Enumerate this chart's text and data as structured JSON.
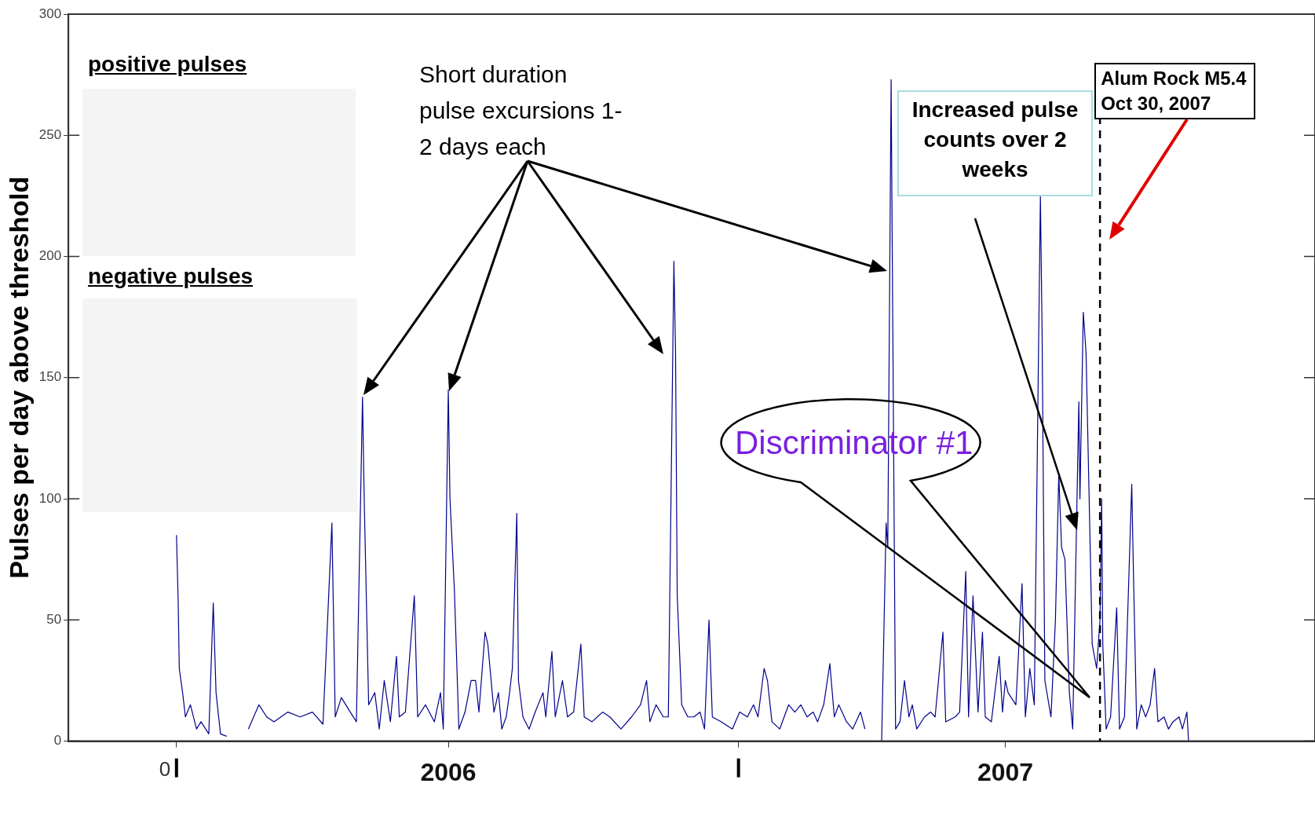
{
  "chart_data": {
    "type": "line",
    "ylabel": "Pulses per day above threshold",
    "annotations": [
      "positive pulses",
      "negative pulses",
      "Short duration pulse excursions 1-2 days each",
      "Increased pulse counts over 2 weeks",
      "Discriminator #1",
      "0"
    ],
    "xlim": [
      2005.318,
      2007.556
    ],
    "xticks": [
      {
        "value": 2005.512,
        "label": null
      },
      2006,
      {
        "value": 2006.521,
        "label": null
      },
      2007
    ],
    "ylim": [
      0,
      300
    ],
    "yticks": [
      0,
      50,
      100,
      150,
      200,
      250,
      300
    ],
    "grid": false,
    "legend": false,
    "marker": "none",
    "line_style": "solid",
    "ref_lines": [
      {
        "axis": "x",
        "value": 2007.17,
        "label": "Alum Rock M5.4 Oct 30, 2007",
        "color": "#000000",
        "line_style": "dashed"
      }
    ],
    "series": [
      {
        "color": "#00008b",
        "x": [
          2005.512,
          2005.515,
          2005.517,
          2005.523,
          2005.528,
          2005.537,
          2005.548,
          2005.556,
          2005.57,
          2005.578,
          2005.583,
          2005.591,
          2005.602,
          2005.622,
          2005.641,
          2005.66,
          2005.674,
          2005.687,
          2005.712,
          2005.734,
          2005.756,
          2005.775,
          2005.791,
          2005.797,
          2005.808,
          2005.824,
          2005.835,
          2005.846,
          2005.849,
          2005.857,
          2005.868,
          2005.876,
          2005.885,
          2005.896,
          2005.907,
          2005.912,
          2005.923,
          2005.939,
          2005.945,
          2005.959,
          2005.975,
          2005.986,
          2005.991,
          2006.0,
          2006.003,
          2006.011,
          2006.019,
          2006.03,
          2006.041,
          2006.049,
          2006.055,
          2006.066,
          2006.071,
          2006.082,
          2006.09,
          2006.096,
          2006.104,
          2006.11,
          2006.115,
          2006.123,
          2006.126,
          2006.134,
          2006.145,
          2006.156,
          2006.17,
          2006.175,
          2006.186,
          2006.192,
          2006.205,
          2006.214,
          2006.225,
          2006.238,
          2006.244,
          2006.258,
          2006.277,
          2006.29,
          2006.31,
          2006.329,
          2006.345,
          2006.356,
          2006.362,
          2006.373,
          2006.386,
          2006.395,
          2006.405,
          2006.408,
          2006.411,
          2006.419,
          2006.43,
          2006.441,
          2006.452,
          2006.46,
          2006.468,
          2006.474,
          2006.49,
          2006.51,
          2006.523,
          2006.537,
          2006.548,
          2006.556,
          2006.567,
          2006.573,
          2006.581,
          2006.595,
          2006.611,
          2006.622,
          2006.633,
          2006.644,
          2006.655,
          2006.663,
          2006.674,
          2006.685,
          2006.693,
          2006.701,
          2006.715,
          2006.726,
          2006.74,
          2006.748,
          2006.773,
          2006.778,
          2006.786,
          2006.789,
          2006.795,
          2006.797,
          2006.803,
          2006.811,
          2006.819,
          2006.827,
          2006.833,
          2006.841,
          2006.855,
          2006.866,
          2006.874,
          2006.888,
          2006.893,
          2006.91,
          2006.918,
          2006.929,
          2006.934,
          2006.942,
          2006.951,
          2006.959,
          2006.964,
          2006.975,
          2006.989,
          2006.995,
          2007.0,
          2007.005,
          2007.019,
          2007.03,
          2007.036,
          2007.044,
          2007.052,
          2007.063,
          2007.066,
          2007.071,
          2007.082,
          2007.09,
          2007.096,
          2007.101,
          2007.107,
          2007.115,
          2007.121,
          2007.132,
          2007.134,
          2007.14,
          2007.145,
          2007.151,
          2007.156,
          2007.164,
          2007.17,
          2007.173,
          2007.175,
          2007.181,
          2007.189,
          2007.2,
          2007.205,
          2007.214,
          2007.227,
          2007.23,
          2007.236,
          2007.244,
          2007.252,
          2007.26,
          2007.268,
          2007.274,
          2007.285,
          2007.293,
          2007.301,
          2007.312,
          2007.318,
          2007.326,
          2007.329
        ],
        "values": [
          85,
          58,
          30,
          20,
          10,
          15,
          5,
          8,
          3,
          57,
          20,
          3,
          2,
          null,
          5,
          15,
          10,
          8,
          12,
          10,
          12,
          7,
          90,
          10,
          18,
          12,
          8,
          142,
          100,
          15,
          20,
          5,
          25,
          8,
          35,
          10,
          12,
          60,
          10,
          15,
          8,
          20,
          5,
          145,
          100,
          62,
          5,
          12,
          25,
          25,
          12,
          45,
          40,
          12,
          20,
          5,
          10,
          20,
          30,
          94,
          25,
          10,
          5,
          12,
          20,
          10,
          37,
          10,
          25,
          10,
          12,
          40,
          10,
          8,
          12,
          10,
          5,
          10,
          15,
          25,
          8,
          15,
          10,
          10,
          198,
          160,
          60,
          15,
          10,
          10,
          12,
          5,
          50,
          10,
          8,
          5,
          12,
          10,
          15,
          10,
          30,
          25,
          8,
          5,
          15,
          12,
          15,
          10,
          12,
          8,
          15,
          32,
          10,
          15,
          8,
          5,
          12,
          5,
          null,
          0,
          90,
          80,
          273,
          204,
          5,
          8,
          25,
          10,
          15,
          5,
          10,
          12,
          10,
          45,
          8,
          10,
          12,
          70,
          10,
          60,
          12,
          45,
          10,
          8,
          35,
          12,
          25,
          20,
          15,
          65,
          10,
          30,
          15,
          225,
          170,
          25,
          10,
          50,
          110,
          80,
          75,
          20,
          5,
          140,
          100,
          177,
          160,
          95,
          40,
          30,
          50,
          100,
          40,
          5,
          10,
          55,
          5,
          10,
          106,
          70,
          5,
          15,
          10,
          15,
          30,
          8,
          10,
          5,
          8,
          10,
          5,
          12,
          0
        ]
      }
    ]
  }
}
